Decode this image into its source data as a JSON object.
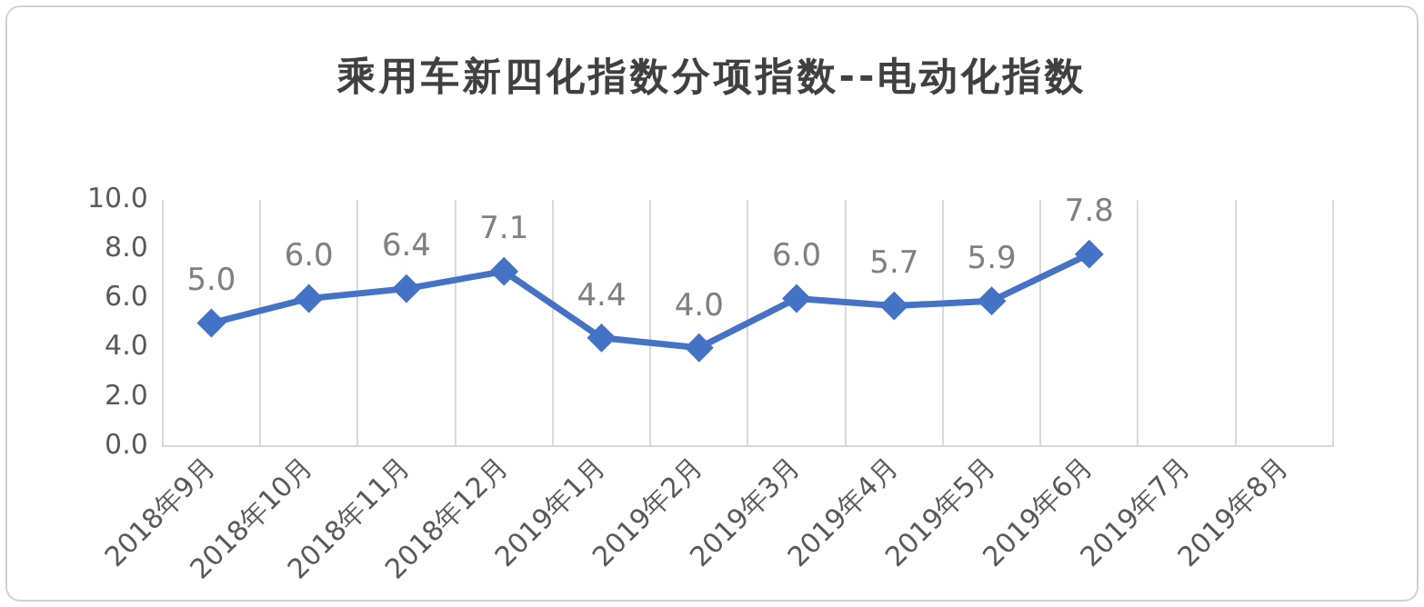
{
  "chart_data": {
    "type": "line",
    "title": "乘用车新四化指数分项指数--电动化指数",
    "categories": [
      "2018年9月",
      "2018年10月",
      "2018年11月",
      "2018年12月",
      "2019年1月",
      "2019年2月",
      "2019年3月",
      "2019年4月",
      "2019年5月",
      "2019年6月",
      "2019年7月",
      "2019年8月"
    ],
    "series": [
      {
        "color": "#4472c4",
        "values": [
          5.0,
          6.0,
          6.4,
          7.1,
          4.4,
          4.0,
          6.0,
          5.7,
          5.9,
          7.8,
          null,
          null
        ],
        "value_labels": [
          "5.0",
          "6.0",
          "6.4",
          "7.1",
          "4.4",
          "4.0",
          "6.0",
          "5.7",
          "5.9",
          "7.8",
          null,
          null
        ]
      }
    ],
    "ylim": [
      0,
      10
    ],
    "yticks": [
      {
        "value": 0,
        "label": "0.0"
      },
      {
        "value": 2,
        "label": "2.0"
      },
      {
        "value": 4,
        "label": "4.0"
      },
      {
        "value": 6,
        "label": "6.0"
      },
      {
        "value": 8,
        "label": "8.0"
      },
      {
        "value": 10,
        "label": "10.0"
      }
    ],
    "grid": "x",
    "legend": false,
    "marker": "diamond",
    "line_style": "solid"
  }
}
